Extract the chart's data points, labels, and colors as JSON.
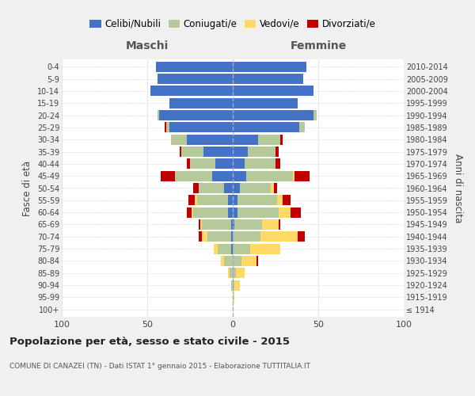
{
  "age_groups": [
    "100+",
    "95-99",
    "90-94",
    "85-89",
    "80-84",
    "75-79",
    "70-74",
    "65-69",
    "60-64",
    "55-59",
    "50-54",
    "45-49",
    "40-44",
    "35-39",
    "30-34",
    "25-29",
    "20-24",
    "15-19",
    "10-14",
    "5-9",
    "0-4"
  ],
  "birth_years": [
    "≤ 1914",
    "1915-1919",
    "1920-1924",
    "1925-1929",
    "1930-1934",
    "1935-1939",
    "1940-1944",
    "1945-1949",
    "1950-1954",
    "1955-1959",
    "1960-1964",
    "1965-1969",
    "1970-1974",
    "1975-1979",
    "1980-1984",
    "1985-1989",
    "1990-1994",
    "1995-1999",
    "2000-2004",
    "2005-2009",
    "2010-2014"
  ],
  "maschi": {
    "celibi": [
      0,
      0,
      0,
      0,
      0,
      1,
      1,
      1,
      3,
      3,
      5,
      12,
      10,
      17,
      27,
      37,
      43,
      37,
      48,
      44,
      45
    ],
    "coniugati": [
      0,
      0,
      1,
      2,
      5,
      8,
      14,
      17,
      20,
      18,
      15,
      22,
      15,
      13,
      9,
      2,
      1,
      0,
      0,
      0,
      0
    ],
    "vedovi": [
      0,
      0,
      0,
      1,
      2,
      2,
      3,
      1,
      1,
      1,
      0,
      0,
      0,
      0,
      0,
      0,
      0,
      0,
      0,
      0,
      0
    ],
    "divorziati": [
      0,
      0,
      0,
      0,
      0,
      0,
      2,
      1,
      3,
      4,
      3,
      8,
      2,
      1,
      0,
      1,
      0,
      0,
      0,
      0,
      0
    ]
  },
  "femmine": {
    "nubili": [
      0,
      0,
      0,
      0,
      0,
      0,
      0,
      1,
      3,
      3,
      4,
      8,
      7,
      9,
      15,
      39,
      47,
      38,
      47,
      41,
      43
    ],
    "coniugate": [
      0,
      0,
      1,
      2,
      5,
      10,
      16,
      16,
      24,
      23,
      18,
      27,
      18,
      16,
      13,
      3,
      2,
      0,
      0,
      0,
      0
    ],
    "vedove": [
      0,
      1,
      3,
      5,
      9,
      18,
      22,
      10,
      7,
      3,
      2,
      1,
      0,
      0,
      0,
      0,
      0,
      0,
      0,
      0,
      0
    ],
    "divorziate": [
      0,
      0,
      0,
      0,
      1,
      0,
      4,
      1,
      6,
      5,
      2,
      9,
      3,
      2,
      1,
      0,
      0,
      0,
      0,
      0,
      0
    ]
  },
  "colors": {
    "celibi_nubili": "#4472c4",
    "coniugati": "#b5c99a",
    "vedovi": "#ffd966",
    "divorziati": "#c00000"
  },
  "xlim": 100,
  "title": "Popolazione per età, sesso e stato civile - 2015",
  "subtitle": "COMUNE DI CANAZEI (TN) - Dati ISTAT 1° gennaio 2015 - Elaborazione TUTTITALIA.IT",
  "ylabel_left": "Fasce di età",
  "ylabel_right": "Anni di nascita",
  "xlabel_left": "Maschi",
  "xlabel_right": "Femmine",
  "legend_labels": [
    "Celibi/Nubili",
    "Coniugati/e",
    "Vedovi/e",
    "Divorziati/e"
  ],
  "background_color": "#f0f0f0",
  "plot_bg_color": "#ffffff"
}
